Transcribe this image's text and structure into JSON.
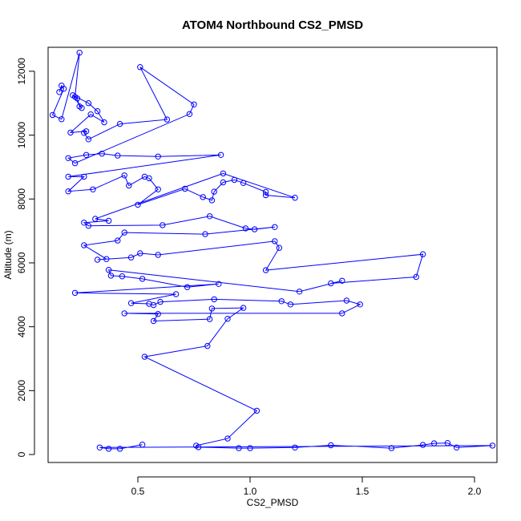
{
  "chart_data": {
    "type": "line",
    "title": "ATOM4 Northbound CS2_PMSD",
    "xlabel": "CS2_PMSD",
    "ylabel": "Altitude (m)",
    "xlim": [
      0.1,
      2.1
    ],
    "ylim": [
      -250,
      12750
    ],
    "x_ticks": [
      0.5,
      1.0,
      1.5,
      2.0
    ],
    "x_tick_labels": [
      "0.5",
      "1.0",
      "1.5",
      "2.0"
    ],
    "y_ticks": [
      0,
      2000,
      4000,
      6000,
      8000,
      10000,
      12000
    ],
    "y_tick_labels": [
      "0",
      "2000",
      "4000",
      "6000",
      "8000",
      "10000",
      "12000"
    ],
    "series": [
      {
        "color": "#0000ff",
        "marker": "open-circle",
        "points": [
          [
            0.15,
            11350
          ],
          [
            0.16,
            11550
          ],
          [
            0.17,
            11450
          ],
          [
            0.12,
            10630
          ],
          [
            0.16,
            10500
          ],
          [
            0.24,
            12580
          ],
          [
            0.22,
            11200
          ],
          [
            0.23,
            11150
          ],
          [
            0.24,
            10900
          ],
          [
            0.25,
            10850
          ],
          [
            0.21,
            11250
          ],
          [
            0.28,
            11000
          ],
          [
            0.32,
            10750
          ],
          [
            0.35,
            10400
          ],
          [
            0.29,
            10650
          ],
          [
            0.2,
            10080
          ],
          [
            0.27,
            10120
          ],
          [
            0.26,
            10070
          ],
          [
            0.28,
            9870
          ],
          [
            0.42,
            10350
          ],
          [
            0.63,
            10490
          ],
          [
            0.51,
            12130
          ],
          [
            0.75,
            10960
          ],
          [
            0.73,
            10660
          ],
          [
            0.22,
            9120
          ],
          [
            0.19,
            9280
          ],
          [
            0.27,
            9380
          ],
          [
            0.34,
            9420
          ],
          [
            0.41,
            9360
          ],
          [
            0.59,
            9330
          ],
          [
            0.87,
            9380
          ],
          [
            0.19,
            8700
          ],
          [
            0.26,
            8700
          ],
          [
            0.19,
            8240
          ],
          [
            0.3,
            8300
          ],
          [
            0.44,
            8740
          ],
          [
            0.46,
            8420
          ],
          [
            0.53,
            8700
          ],
          [
            0.55,
            8650
          ],
          [
            0.59,
            8300
          ],
          [
            0.5,
            7820
          ],
          [
            0.71,
            8320
          ],
          [
            0.79,
            8060
          ],
          [
            0.83,
            7960
          ],
          [
            0.84,
            8230
          ],
          [
            0.88,
            8520
          ],
          [
            0.93,
            8600
          ],
          [
            0.97,
            8500
          ],
          [
            1.07,
            8220
          ],
          [
            1.07,
            8120
          ],
          [
            1.2,
            8040
          ],
          [
            0.88,
            8800
          ],
          [
            0.31,
            7380
          ],
          [
            0.37,
            7320
          ],
          [
            0.26,
            7260
          ],
          [
            0.28,
            7160
          ],
          [
            0.61,
            7180
          ],
          [
            0.82,
            7460
          ],
          [
            0.98,
            7080
          ],
          [
            1.02,
            7050
          ],
          [
            1.11,
            7120
          ],
          [
            0.8,
            6900
          ],
          [
            0.44,
            6950
          ],
          [
            0.41,
            6700
          ],
          [
            0.26,
            6550
          ],
          [
            0.36,
            6120
          ],
          [
            0.32,
            6100
          ],
          [
            0.47,
            6170
          ],
          [
            0.51,
            6300
          ],
          [
            0.59,
            6250
          ],
          [
            1.11,
            6680
          ],
          [
            1.13,
            6470
          ],
          [
            1.07,
            5770
          ],
          [
            1.77,
            6270
          ],
          [
            1.74,
            5560
          ],
          [
            1.36,
            5360
          ],
          [
            1.41,
            5440
          ],
          [
            1.22,
            5100
          ],
          [
            0.37,
            5780
          ],
          [
            0.38,
            5600
          ],
          [
            0.43,
            5580
          ],
          [
            0.52,
            5500
          ],
          [
            0.72,
            5240
          ],
          [
            0.86,
            5340
          ],
          [
            0.22,
            5060
          ],
          [
            0.67,
            5020
          ],
          [
            0.47,
            4740
          ],
          [
            0.55,
            4720
          ],
          [
            0.57,
            4680
          ],
          [
            0.6,
            4780
          ],
          [
            0.84,
            4860
          ],
          [
            1.14,
            4800
          ],
          [
            1.18,
            4700
          ],
          [
            1.43,
            4820
          ],
          [
            1.49,
            4700
          ],
          [
            1.41,
            4420
          ],
          [
            0.44,
            4420
          ],
          [
            0.59,
            4400
          ],
          [
            0.57,
            4180
          ],
          [
            0.82,
            4240
          ],
          [
            0.83,
            4570
          ],
          [
            0.97,
            4590
          ],
          [
            0.9,
            4250
          ],
          [
            0.81,
            3400
          ],
          [
            0.53,
            3060
          ],
          [
            1.03,
            1370
          ],
          [
            0.9,
            500
          ],
          [
            0.76,
            280
          ],
          [
            0.77,
            230
          ],
          [
            0.95,
            200
          ],
          [
            1.0,
            200
          ],
          [
            1.2,
            220
          ],
          [
            1.36,
            290
          ],
          [
            1.63,
            200
          ],
          [
            1.77,
            300
          ],
          [
            1.82,
            350
          ],
          [
            1.88,
            360
          ],
          [
            1.92,
            220
          ],
          [
            2.08,
            280
          ],
          [
            0.33,
            220
          ],
          [
            0.37,
            180
          ],
          [
            0.42,
            180
          ],
          [
            0.52,
            310
          ]
        ]
      }
    ]
  }
}
